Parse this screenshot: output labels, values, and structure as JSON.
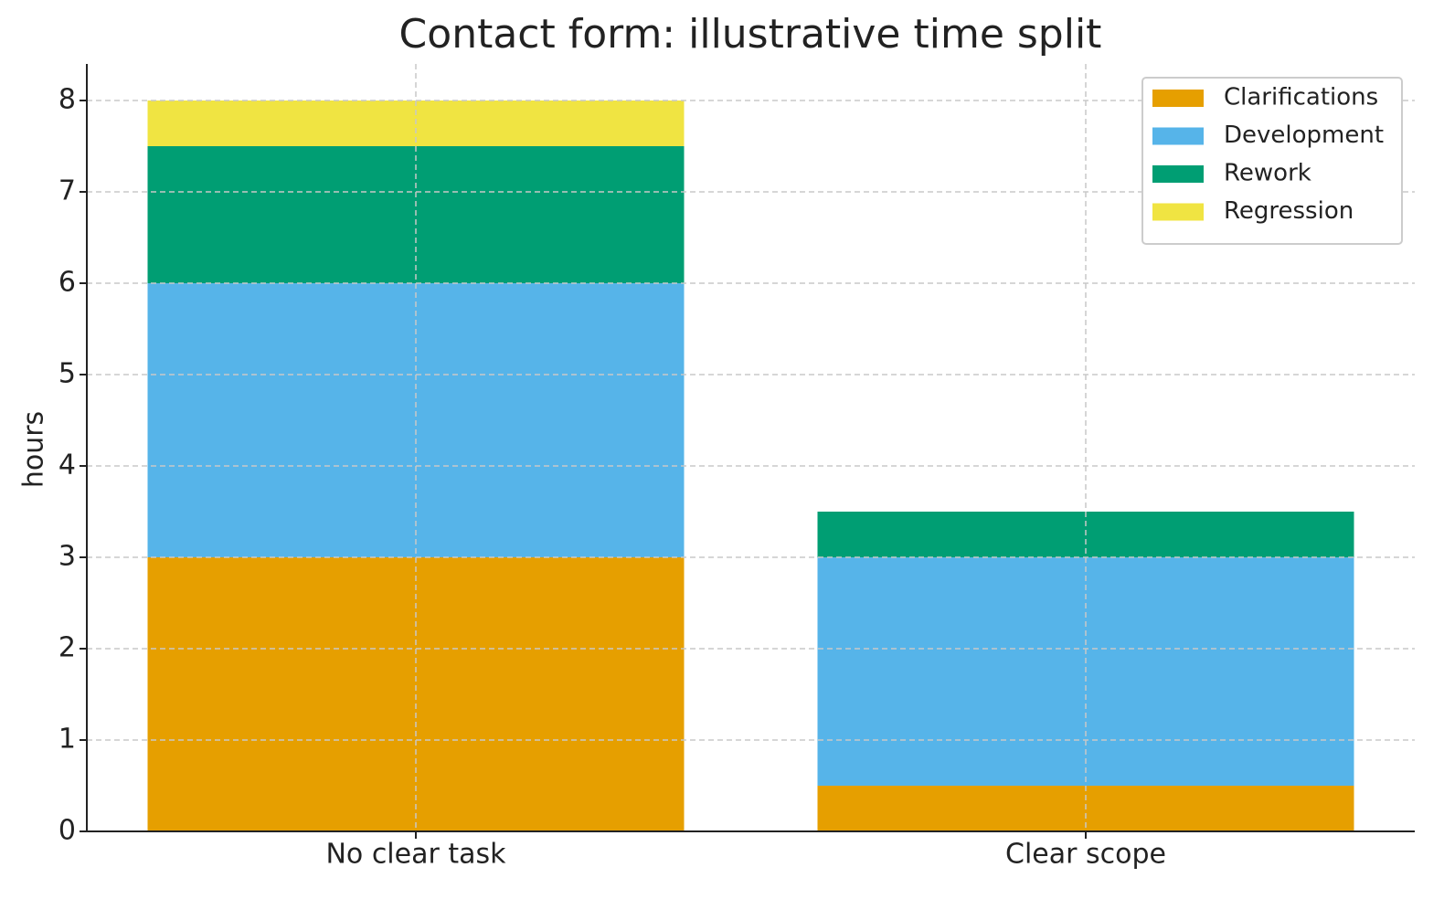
{
  "chart_data": {
    "type": "bar",
    "stacked": true,
    "title": "Contact form: illustrative time split",
    "y_label": "hours",
    "categories": [
      "No clear task",
      "Clear scope"
    ],
    "series": [
      {
        "name": "Clarifications",
        "color": "#E69F00",
        "values": [
          3,
          0.5
        ]
      },
      {
        "name": "Development",
        "color": "#56B4E9",
        "values": [
          3,
          2.5
        ]
      },
      {
        "name": "Rework",
        "color": "#009E73",
        "values": [
          1.5,
          0.5
        ]
      },
      {
        "name": "Regression",
        "color": "#F0E442",
        "values": [
          0.5,
          0
        ]
      }
    ],
    "ylim": [
      0,
      8.4
    ],
    "yticks": [
      0,
      1,
      2,
      3,
      4,
      5,
      6,
      7,
      8
    ],
    "grid": true,
    "legend": "upper right"
  }
}
